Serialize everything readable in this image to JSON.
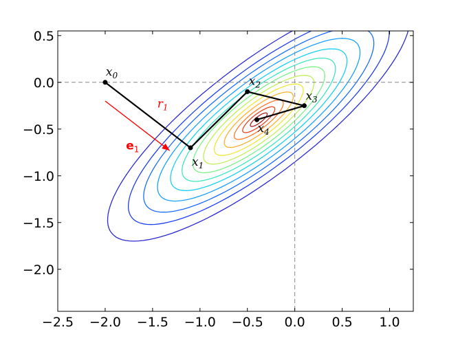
{
  "chart_data": {
    "type": "contour",
    "xlim": [
      -2.5,
      1.25
    ],
    "ylim": [
      -2.45,
      0.55
    ],
    "xticks": [
      {
        "value": -2.5,
        "label": "−2.5"
      },
      {
        "value": -2.0,
        "label": "−2.0"
      },
      {
        "value": -1.5,
        "label": "−1.5"
      },
      {
        "value": -1.0,
        "label": "−1.0"
      },
      {
        "value": -0.5,
        "label": "−0.5"
      },
      {
        "value": 0.0,
        "label": "0.0"
      },
      {
        "value": 0.5,
        "label": "0.5"
      },
      {
        "value": 1.0,
        "label": "1.0"
      }
    ],
    "yticks": [
      {
        "value": 0.5,
        "label": "0.5"
      },
      {
        "value": 0.0,
        "label": "0.0"
      },
      {
        "value": -0.5,
        "label": "−0.5"
      },
      {
        "value": -1.0,
        "label": "−1.0"
      },
      {
        "value": -1.5,
        "label": "−1.5"
      },
      {
        "value": -2.0,
        "label": "−2.0"
      }
    ],
    "reference_lines": {
      "x": 0.0,
      "y": 0.0,
      "style": "dashed",
      "color": "#888888"
    },
    "contours": {
      "center": [
        -0.38,
        -0.4
      ],
      "angle_deg": 38,
      "axis_ratio": 0.3,
      "semi_major": [
        1.97,
        1.7,
        1.5,
        1.32,
        1.15,
        1.0,
        0.86,
        0.72,
        0.58,
        0.45,
        0.32,
        0.21,
        0.11
      ],
      "colors": [
        "#2a2ad0",
        "#1e3ef0",
        "#1a6cff",
        "#1aa0ff",
        "#19d0f2",
        "#3ee6c0",
        "#7cf08a",
        "#bff05a",
        "#f0e63a",
        "#ffb030",
        "#ff7a28",
        "#e64422",
        "#b01d1d"
      ]
    },
    "path": {
      "points": [
        {
          "name": "x0",
          "x": -2.0,
          "y": 0.0
        },
        {
          "name": "x1",
          "x": -1.1,
          "y": -0.7
        },
        {
          "name": "x2",
          "x": -0.5,
          "y": -0.1
        },
        {
          "name": "x3",
          "x": 0.1,
          "y": -0.25
        },
        {
          "name": "x4",
          "x": -0.4,
          "y": -0.4
        }
      ],
      "color": "#000000"
    },
    "annotations": {
      "direction_arrow": {
        "from": [
          -2.0,
          -0.2
        ],
        "to": [
          -1.32,
          -0.73
        ],
        "color": "#ff0000"
      },
      "r_label": {
        "base": "r",
        "sub": "1",
        "x": -1.45,
        "y": -0.27,
        "color": "#ff0000"
      },
      "e_label": {
        "base": "e",
        "sub": "1",
        "x": -1.78,
        "y": -0.72,
        "color": "#ff0000"
      }
    }
  }
}
